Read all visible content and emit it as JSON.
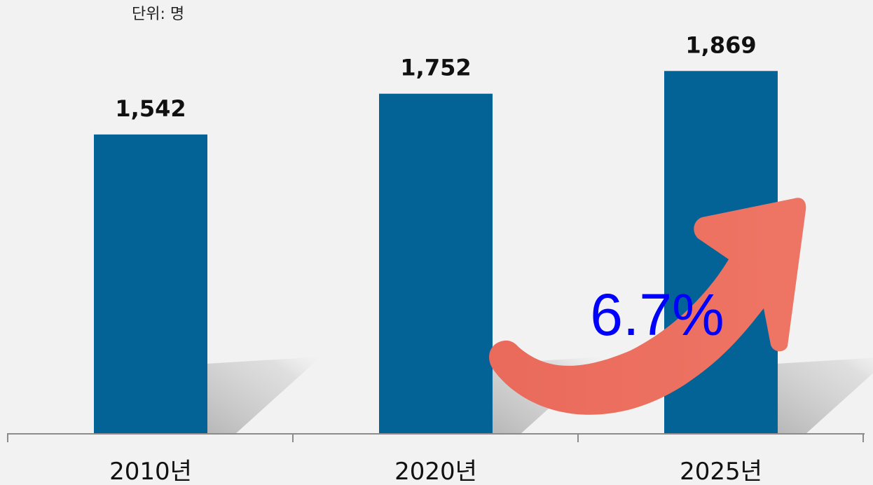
{
  "chart_data": {
    "type": "bar",
    "unit_label": "단위: 명",
    "categories": [
      "2010년",
      "2020년",
      "2025년"
    ],
    "values": [
      1542,
      1752,
      1869
    ],
    "value_labels": [
      "1,542",
      "1,752",
      "1,869"
    ],
    "ylim": [
      0,
      2000
    ],
    "grid": false,
    "legend": "none",
    "annotation": {
      "text": "6.7%",
      "shape": "upward-curved-arrow"
    },
    "colors": {
      "bar": "#036296",
      "arrow": "#ec7061",
      "annotation_text": "#0000ff",
      "axis": "#8c8c8c",
      "background": "#f2f2f2",
      "shadow": "#c8c8c8"
    }
  }
}
